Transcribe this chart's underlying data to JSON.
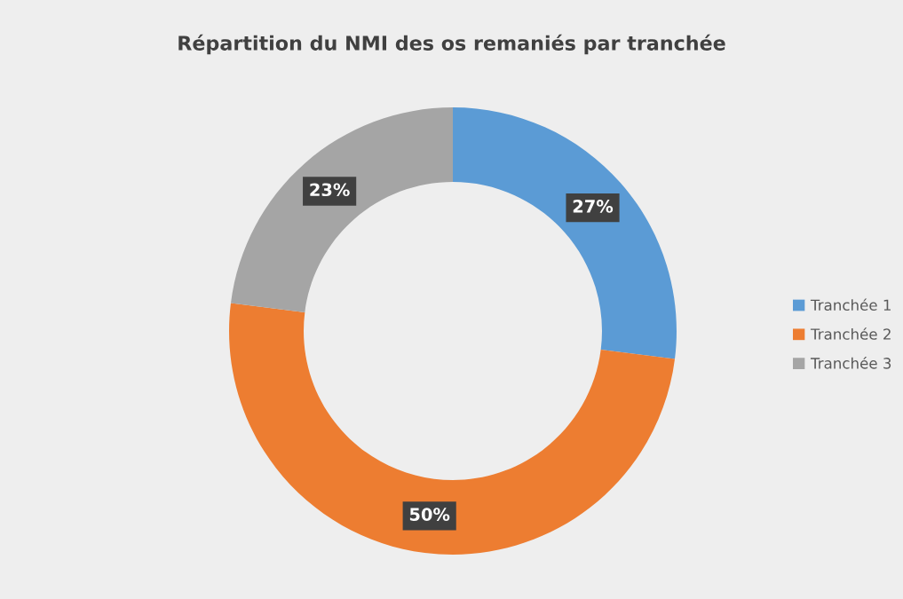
{
  "chart_data": {
    "type": "donut",
    "title": "Répartition du NMI des os remaniés par tranchée",
    "categories": [
      "Tranchée 1",
      "Tranchée 2",
      "Tranchée 3"
    ],
    "values": [
      27,
      50,
      23
    ],
    "colors": [
      "#5b9bd5",
      "#ed7d31",
      "#a5a5a5"
    ],
    "value_labels": [
      "27%",
      "50%",
      "23%"
    ],
    "legend": "right"
  }
}
